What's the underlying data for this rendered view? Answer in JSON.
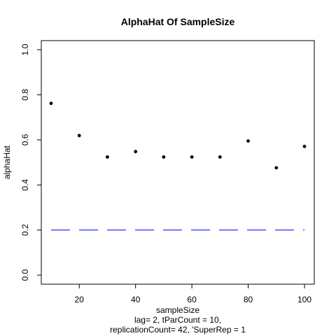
{
  "chart_data": {
    "type": "scatter",
    "title": "AlphaHat Of SampleSize",
    "xlabel": "sampleSize",
    "ylabel": "alphaHat",
    "subtitle_lines": [
      "lag= 2, tParCount = 10,",
      "replicationCount= 42, 'SuperRep = 1"
    ],
    "xlim": [
      10,
      100
    ],
    "ylim": [
      0,
      1
    ],
    "x_ticks": [
      20,
      40,
      60,
      80,
      100
    ],
    "x_tick_labels": [
      "20",
      "40",
      "60",
      "80",
      "100"
    ],
    "y_ticks": [
      0,
      0.2,
      0.4,
      0.6,
      0.8,
      1
    ],
    "y_tick_labels": [
      "0.0",
      "0.2",
      "0.4",
      "0.6",
      "0.8",
      "1.0"
    ],
    "grid": false,
    "series": [
      {
        "type": "scatter",
        "x": [
          10,
          20,
          30,
          40,
          50,
          60,
          70,
          80,
          90,
          100
        ],
        "y": [
          0.762,
          0.619,
          0.524,
          0.548,
          0.524,
          0.524,
          0.524,
          0.595,
          0.476,
          0.571
        ],
        "color": "#000000"
      },
      {
        "type": "line",
        "x": [
          10,
          100
        ],
        "y": [
          0.2,
          0.2
        ],
        "color": "#0000ff",
        "style": "dashed"
      }
    ]
  }
}
